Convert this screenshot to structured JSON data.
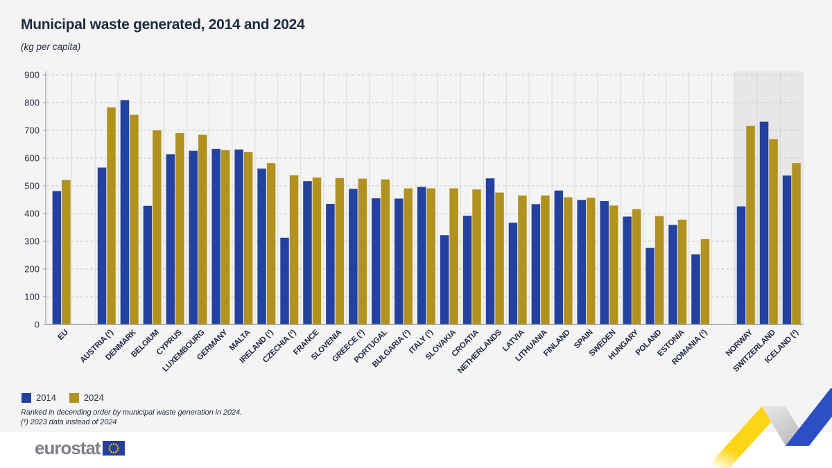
{
  "page": {
    "title": "Municipal waste generated, 2014 and 2024",
    "subtitle": "(kg per capita)",
    "footnote_line1": "Ranked in decending order by municipal waste generation in 2024.",
    "footnote_line2": "(¹) 2023 data instead of 2024",
    "logo_text": "eurostat"
  },
  "chart_data": {
    "type": "bar",
    "title": "Municipal waste generated, 2014 and 2024",
    "unit_label": "(kg per capita)",
    "ylim": [
      0,
      900
    ],
    "ytick_step": 100,
    "ytick_labels": [
      "0",
      "100",
      "200",
      "300",
      "400",
      "500",
      "600",
      "700",
      "800",
      "900"
    ],
    "grid": true,
    "legend_position": "bottom-left",
    "series_names": [
      "2014",
      "2024"
    ],
    "colors": {
      "2014": "#2342a0",
      "2024": "#b1921f",
      "efta_band": "#e7e7e7",
      "text": "#202c44",
      "gridline_dashed": "#c8c8c8",
      "gridline_vertical": "#dadada",
      "axis": "#9a9a9a"
    },
    "groups": [
      {
        "label": "EU",
        "zone": "eu",
        "v2014": 481,
        "v2024": 521
      },
      {
        "label": "AUSTRIA (¹)",
        "zone": "ms",
        "v2014": 566,
        "v2024": 783
      },
      {
        "label": "DENMARK",
        "zone": "ms",
        "v2014": 809,
        "v2024": 756
      },
      {
        "label": "BELGIUM",
        "zone": "ms",
        "v2014": 428,
        "v2024": 700
      },
      {
        "label": "CYPRUS",
        "zone": "ms",
        "v2014": 614,
        "v2024": 690
      },
      {
        "label": "LUXEMBOURG",
        "zone": "ms",
        "v2014": 626,
        "v2024": 684
      },
      {
        "label": "GERMANY",
        "zone": "ms",
        "v2014": 633,
        "v2024": 629
      },
      {
        "label": "MALTA",
        "zone": "ms",
        "v2014": 631,
        "v2024": 622
      },
      {
        "label": "IRELAND (¹)",
        "zone": "ms",
        "v2014": 562,
        "v2024": 582
      },
      {
        "label": "CZECHIA (¹)",
        "zone": "ms",
        "v2014": 313,
        "v2024": 538
      },
      {
        "label": "FRANCE",
        "zone": "ms",
        "v2014": 517,
        "v2024": 530
      },
      {
        "label": "SLOVENIA",
        "zone": "ms",
        "v2014": 435,
        "v2024": 528
      },
      {
        "label": "GREECE (¹)",
        "zone": "ms",
        "v2014": 489,
        "v2024": 526
      },
      {
        "label": "PORTUGAL",
        "zone": "ms",
        "v2014": 455,
        "v2024": 523
      },
      {
        "label": "BULGARIA (¹)",
        "zone": "ms",
        "v2014": 454,
        "v2024": 491
      },
      {
        "label": "ITALY (¹)",
        "zone": "ms",
        "v2014": 496,
        "v2024": 491
      },
      {
        "label": "SLOVAKIA",
        "zone": "ms",
        "v2014": 322,
        "v2024": 491
      },
      {
        "label": "CROATIA",
        "zone": "ms",
        "v2014": 392,
        "v2024": 487
      },
      {
        "label": "NETHERLANDS",
        "zone": "ms",
        "v2014": 527,
        "v2024": 476
      },
      {
        "label": "LATVIA",
        "zone": "ms",
        "v2014": 367,
        "v2024": 465
      },
      {
        "label": "LITHUANIA",
        "zone": "ms",
        "v2014": 434,
        "v2024": 465
      },
      {
        "label": "FINLAND",
        "zone": "ms",
        "v2014": 483,
        "v2024": 459
      },
      {
        "label": "SPAIN",
        "zone": "ms",
        "v2014": 449,
        "v2024": 457
      },
      {
        "label": "SWEDEN",
        "zone": "ms",
        "v2014": 445,
        "v2024": 429
      },
      {
        "label": "HUNGARY",
        "zone": "ms",
        "v2014": 389,
        "v2024": 416
      },
      {
        "label": "POLAND",
        "zone": "ms",
        "v2014": 276,
        "v2024": 391
      },
      {
        "label": "ESTONIA",
        "zone": "ms",
        "v2014": 359,
        "v2024": 378
      },
      {
        "label": "ROMANIA (¹)",
        "zone": "ms",
        "v2014": 253,
        "v2024": 308
      },
      {
        "label": "NORWAY",
        "zone": "efta",
        "v2014": 426,
        "v2024": 716
      },
      {
        "label": "SWITZERLAND",
        "zone": "efta",
        "v2014": 731,
        "v2024": 668
      },
      {
        "label": "ICELAND (¹)",
        "zone": "efta",
        "v2014": 537,
        "v2024": 582
      }
    ]
  }
}
